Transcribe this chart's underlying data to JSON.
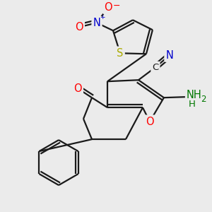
{
  "bg_color": "#ebebeb",
  "bond_color": "#1a1a1a",
  "bond_width": 1.6,
  "atom_colors": {
    "O": "#ff0000",
    "N": "#0000cc",
    "S": "#aaaa00",
    "C": "#1a1a1a",
    "NH2": "#007700"
  },
  "font_size_atoms": 10.5,
  "font_size_charge": 7
}
